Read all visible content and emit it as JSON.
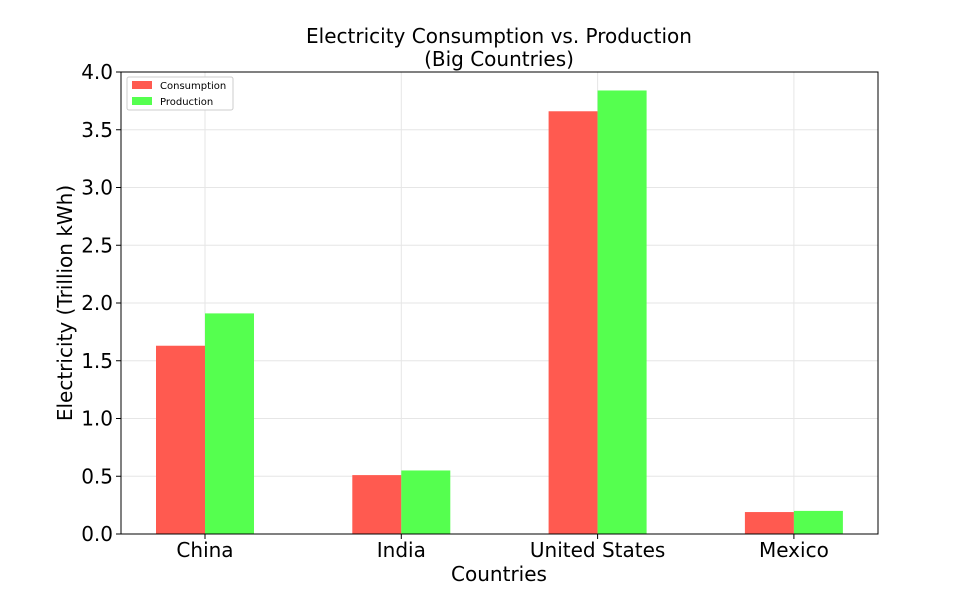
{
  "chart_data": {
    "type": "bar",
    "title": "Electricity Consumption vs. Production",
    "subtitle": "(Big Countries)",
    "xlabel": "Countries",
    "ylabel": "Electricity (Trillion kWh)",
    "categories": [
      "China",
      "India",
      "United States",
      "Mexico"
    ],
    "series": [
      {
        "name": "Consumption",
        "color": "#ff5a50",
        "values": [
          1.63,
          0.51,
          3.66,
          0.19
        ]
      },
      {
        "name": "Production",
        "color": "#55ff4f",
        "values": [
          1.91,
          0.55,
          3.84,
          0.2
        ]
      }
    ],
    "ylim": [
      0,
      4.0
    ],
    "yticks": [
      "0.0",
      "0.5",
      "1.0",
      "1.5",
      "2.0",
      "2.5",
      "3.0",
      "3.5",
      "4.0"
    ],
    "grid": true,
    "legend_position": "top-left"
  }
}
